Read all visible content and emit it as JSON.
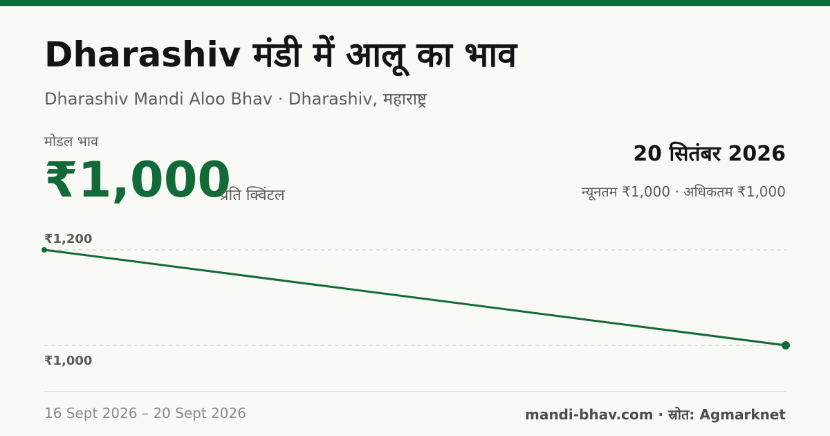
{
  "colors": {
    "brand": "#116b38",
    "background": "#f9f9f6",
    "text": "#141414",
    "muted": "#5c5c5c",
    "grid": "#c4c4c4"
  },
  "header": {
    "title": "Dharashiv मंडी में आलू का भाव",
    "subtitle": "Dharashiv Mandi Aloo Bhav · Dharashiv, महाराष्ट्र"
  },
  "price": {
    "label": "मोडल भाव",
    "value": "₹1,000",
    "unit": "प्रति क्विंटल"
  },
  "summary": {
    "date": "20 सितंबर 2026",
    "range": "न्यूनतम ₹1,000 · अधिकतम ₹1,000"
  },
  "footer": {
    "date_range": "16 Sept 2026 – 20 Sept 2026",
    "source": "mandi-bhav.com · स्रोत: Agmarknet"
  },
  "chart_data": {
    "type": "line",
    "x": [
      "16 Sept 2026",
      "20 Sept 2026"
    ],
    "series": [
      {
        "values": [
          1200,
          1000
        ]
      }
    ],
    "ylim": [
      1000,
      1200
    ],
    "y_tick_labels": [
      "₹1,200",
      "₹1,000"
    ],
    "grid": true
  }
}
